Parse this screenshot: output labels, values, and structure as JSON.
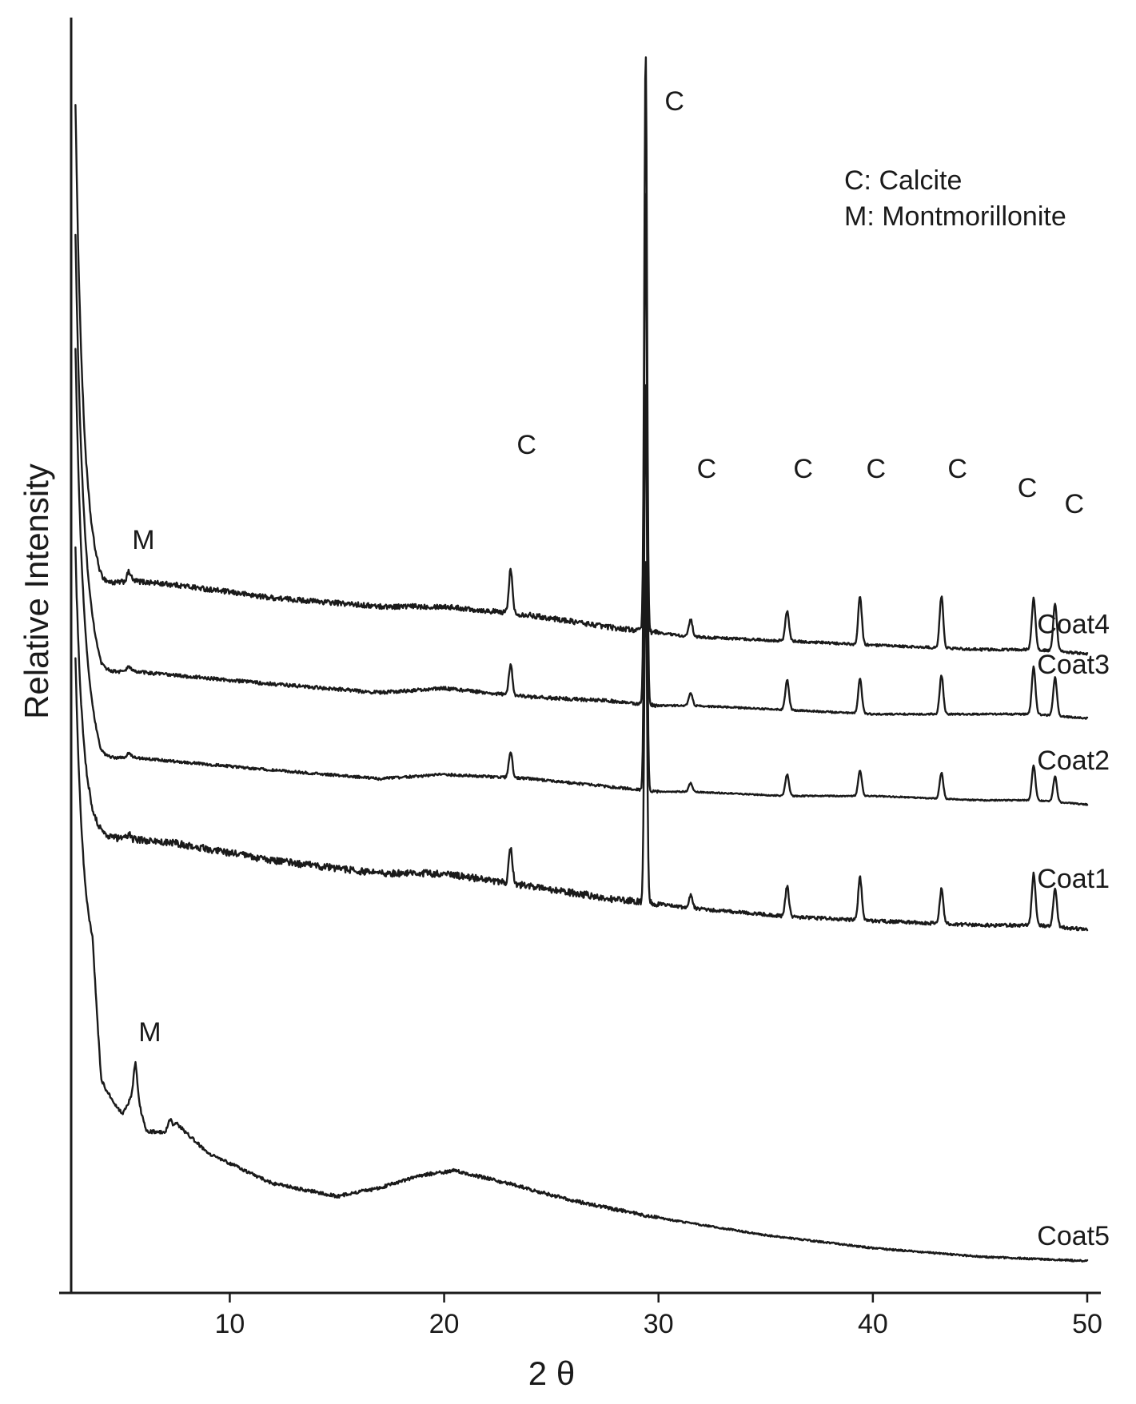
{
  "chart_data": {
    "type": "line",
    "xlabel": "2 θ",
    "ylabel": "Relative Intensity",
    "xlim": [
      2.6,
      50
    ],
    "xticks": [
      10,
      20,
      30,
      40,
      50
    ],
    "grid": false,
    "y_axis_ticks": false,
    "legend": {
      "placement": "top-right",
      "entries": [
        "C: Calcite",
        "M: Montmorillonite"
      ]
    },
    "series_order_top_to_bottom": [
      "Coat4",
      "Coat3",
      "Coat2",
      "Coat1",
      "Coat5"
    ],
    "series": [
      {
        "name": "Coat4",
        "baseline_trend": [
          [
            2.8,
            0.64
          ],
          [
            4.0,
            0.56
          ],
          [
            5.3,
            0.58
          ],
          [
            7.5,
            0.57
          ],
          [
            12,
            0.54
          ],
          [
            17,
            0.52
          ],
          [
            20,
            0.52
          ],
          [
            24,
            0.5
          ],
          [
            28,
            0.47
          ],
          [
            29.9,
            0.46
          ],
          [
            31.4,
            0.45
          ],
          [
            36,
            0.44
          ],
          [
            40,
            0.43
          ],
          [
            45,
            0.42
          ],
          [
            47.6,
            0.42
          ],
          [
            50,
            0.41
          ]
        ],
        "initial_peak": 1.05,
        "peaks": [
          [
            5.3,
            0.02
          ],
          [
            23.1,
            0.1
          ],
          [
            29.4,
            1.35
          ],
          [
            31.5,
            0.04
          ],
          [
            36.0,
            0.07
          ],
          [
            39.4,
            0.11
          ],
          [
            43.2,
            0.12
          ],
          [
            47.5,
            0.12
          ],
          [
            48.5,
            0.11
          ]
        ],
        "noise": 0.006
      },
      {
        "name": "Coat3",
        "baseline_trend": [
          [
            2.8,
            0.5
          ],
          [
            4.0,
            0.36
          ],
          [
            5.3,
            0.37
          ],
          [
            7.5,
            0.36
          ],
          [
            12,
            0.34
          ],
          [
            17,
            0.32
          ],
          [
            20,
            0.33
          ],
          [
            24,
            0.31
          ],
          [
            28,
            0.3
          ],
          [
            29.9,
            0.29
          ],
          [
            31.4,
            0.29
          ],
          [
            36,
            0.28
          ],
          [
            40,
            0.27
          ],
          [
            45,
            0.27
          ],
          [
            47.6,
            0.27
          ],
          [
            50,
            0.26
          ]
        ],
        "initial_peak": 0.88,
        "peaks": [
          [
            5.3,
            0.01
          ],
          [
            23.1,
            0.07
          ],
          [
            29.4,
            1.2
          ],
          [
            31.5,
            0.03
          ],
          [
            36.0,
            0.07
          ],
          [
            39.4,
            0.08
          ],
          [
            43.2,
            0.09
          ],
          [
            47.5,
            0.11
          ],
          [
            48.5,
            0.09
          ]
        ],
        "noise": 0.004
      },
      {
        "name": "Coat2",
        "baseline_trend": [
          [
            2.8,
            0.3
          ],
          [
            4.0,
            0.16
          ],
          [
            5.3,
            0.17
          ],
          [
            7.5,
            0.16
          ],
          [
            12,
            0.14
          ],
          [
            17,
            0.12
          ],
          [
            20,
            0.13
          ],
          [
            24,
            0.12
          ],
          [
            28,
            0.1
          ],
          [
            29.9,
            0.09
          ],
          [
            31.4,
            0.09
          ],
          [
            36,
            0.08
          ],
          [
            40,
            0.08
          ],
          [
            45,
            0.07
          ],
          [
            47.6,
            0.07
          ],
          [
            50,
            0.06
          ]
        ],
        "initial_peak": 0.82,
        "peaks": [
          [
            5.3,
            0.01
          ],
          [
            23.1,
            0.06
          ],
          [
            29.4,
            0.95
          ],
          [
            31.5,
            0.02
          ],
          [
            36.0,
            0.05
          ],
          [
            39.4,
            0.06
          ],
          [
            43.2,
            0.06
          ],
          [
            47.5,
            0.08
          ],
          [
            48.5,
            0.06
          ]
        ],
        "noise": 0.003
      },
      {
        "name": "Coat1",
        "baseline_trend": [
          [
            2.8,
            0.0
          ],
          [
            4.0,
            -0.02
          ],
          [
            5.3,
            -0.02
          ],
          [
            7.5,
            -0.03
          ],
          [
            12,
            -0.07
          ],
          [
            17,
            -0.1
          ],
          [
            20,
            -0.1
          ],
          [
            24,
            -0.13
          ],
          [
            28,
            -0.16
          ],
          [
            29.9,
            -0.17
          ],
          [
            31.4,
            -0.18
          ],
          [
            36,
            -0.2
          ],
          [
            40,
            -0.21
          ],
          [
            45,
            -0.22
          ],
          [
            47.6,
            -0.22
          ],
          [
            50,
            -0.23
          ]
        ],
        "initial_peak": 0.65,
        "peaks": [
          [
            5.3,
            0.01
          ],
          [
            23.1,
            0.08
          ],
          [
            29.4,
            0.8
          ],
          [
            31.5,
            0.03
          ],
          [
            36.0,
            0.07
          ],
          [
            39.4,
            0.1
          ],
          [
            43.2,
            0.08
          ],
          [
            47.5,
            0.12
          ],
          [
            48.5,
            0.09
          ]
        ],
        "noise": 0.008
      },
      {
        "name": "Coat5",
        "baseline_trend": [
          [
            2.8,
            -0.3
          ],
          [
            3.6,
            -0.32
          ],
          [
            4.0,
            -0.6
          ],
          [
            5.0,
            -0.66
          ],
          [
            5.6,
            -0.6
          ],
          [
            6.1,
            -0.7
          ],
          [
            7.0,
            -0.7
          ],
          [
            7.5,
            -0.68
          ],
          [
            9.0,
            -0.75
          ],
          [
            12,
            -0.82
          ],
          [
            15,
            -0.85
          ],
          [
            17,
            -0.83
          ],
          [
            19,
            -0.8
          ],
          [
            20.5,
            -0.79
          ],
          [
            23,
            -0.82
          ],
          [
            26,
            -0.86
          ],
          [
            30,
            -0.9
          ],
          [
            35,
            -0.94
          ],
          [
            40,
            -0.97
          ],
          [
            45,
            -0.99
          ],
          [
            50,
            -1.0
          ]
        ],
        "initial_peak": 0.7,
        "peaks": [
          [
            5.6,
            0.06
          ],
          [
            7.2,
            0.02
          ]
        ],
        "noise": 0.004
      }
    ],
    "annotations": [
      {
        "text": "C",
        "series": "Coat4",
        "x": 29.4,
        "note": "main calcite peak"
      },
      {
        "text": "M",
        "series": "Coat4",
        "x": 5.3
      },
      {
        "text": "C",
        "series": "Coat4",
        "x": 23.1
      },
      {
        "text": "C",
        "series": "Coat4",
        "x": 31.5
      },
      {
        "text": "C",
        "series": "Coat4",
        "x": 36.0
      },
      {
        "text": "C",
        "series": "Coat4",
        "x": 39.4
      },
      {
        "text": "C",
        "series": "Coat4",
        "x": 43.2
      },
      {
        "text": "C",
        "series": "Coat4",
        "x": 47.5
      },
      {
        "text": "C",
        "series": "Coat4",
        "x": 48.5
      },
      {
        "text": "M",
        "series": "Coat5",
        "x": 5.6
      }
    ]
  }
}
